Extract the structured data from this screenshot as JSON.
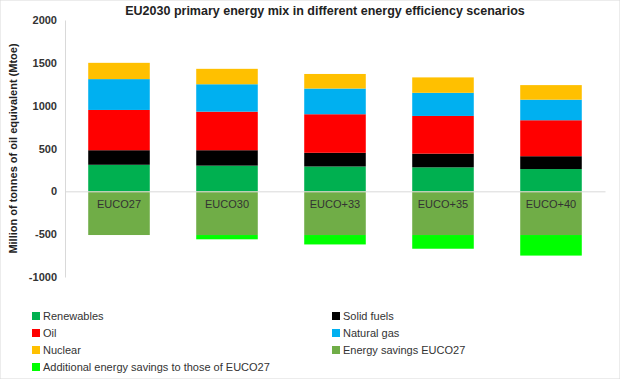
{
  "chart_data": {
    "type": "bar",
    "stacked": true,
    "grid": false,
    "legend": "bottom",
    "title": "EU2030 primary energy mix in different energy efficiency scenarios",
    "y_label": "Million of  tonnes of oil equivalent (Mtoe)",
    "categories": [
      "EUCO27",
      "EUCO30",
      "EUCO+33",
      "EUCO+35",
      "EUCO+40"
    ],
    "ylim": [
      -1000,
      2000
    ],
    "yticks": [
      2000,
      1500,
      1000,
      500,
      0,
      -500,
      -1000
    ],
    "series": [
      {
        "name": "Renewables",
        "color": "#00b050",
        "values": [
          310,
          300,
          290,
          280,
          260
        ]
      },
      {
        "name": "Solid fuels",
        "color": "#000000",
        "values": [
          170,
          180,
          160,
          160,
          150
        ]
      },
      {
        "name": "Oil",
        "color": "#ff0000",
        "values": [
          470,
          450,
          450,
          440,
          420
        ]
      },
      {
        "name": "Natural gas",
        "color": "#00b0f0",
        "values": [
          360,
          320,
          300,
          270,
          240
        ]
      },
      {
        "name": "Nuclear",
        "color": "#ffc000",
        "values": [
          190,
          180,
          170,
          180,
          170
        ]
      },
      {
        "name": "Energy savings EUCO27",
        "color": "#70ad47",
        "values": [
          -510,
          -510,
          -510,
          -510,
          -510
        ]
      },
      {
        "name": "Additional energy savings to those of EUCO27",
        "color": "#00ff00",
        "values": [
          0,
          -50,
          -110,
          -160,
          -240
        ]
      }
    ]
  }
}
